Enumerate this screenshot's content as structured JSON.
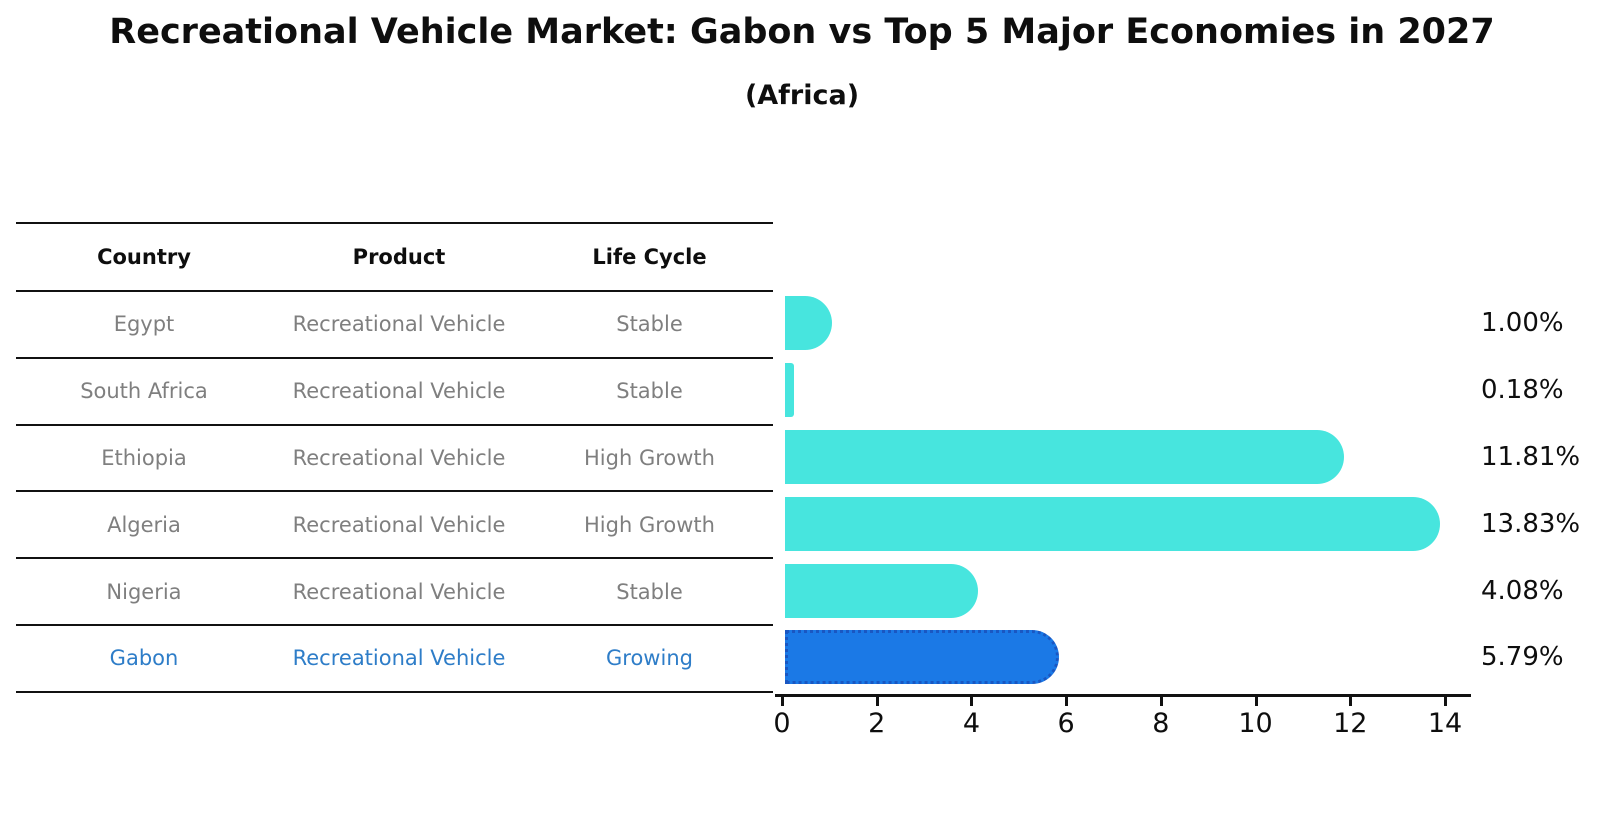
{
  "chart_data": {
    "type": "bar",
    "orientation": "horizontal",
    "title": "Recreational Vehicle Market: Gabon vs Top 5 Major Economies in 2027",
    "subtitle": "(Africa)",
    "categories": [
      "Egypt",
      "South Africa",
      "Ethiopia",
      "Algeria",
      "Nigeria",
      "Gabon"
    ],
    "values": [
      1.0,
      0.18,
      11.81,
      13.83,
      4.08,
      5.79
    ],
    "value_labels": [
      "1.00%",
      "0.18%",
      "11.81%",
      "13.83%",
      "4.08%",
      "5.79%"
    ],
    "x_ticks": [
      "0",
      "2",
      "4",
      "6",
      "8",
      "10",
      "12",
      "14"
    ],
    "x_tick_values": [
      0,
      2,
      4,
      6,
      8,
      10,
      12,
      14
    ],
    "xlim": [
      0,
      14.5
    ],
    "xlabel": "",
    "ylabel": "",
    "grid": false,
    "legend": "none",
    "highlight_category": "Gabon",
    "colors": {
      "bar_default": "#47e5de",
      "bar_highlight": "#1b79e6",
      "bar_highlight_border": "#1a57c2",
      "axis": "#111111",
      "row_text": "#7f7f7f",
      "highlight_text": "#2e7dc8"
    }
  },
  "table": {
    "headers": [
      "Country",
      "Product",
      "Life Cycle"
    ],
    "rows": [
      {
        "country": "Egypt",
        "product": "Recreational Vehicle",
        "life_cycle": "Stable",
        "highlighted": false
      },
      {
        "country": "South Africa",
        "product": "Recreational Vehicle",
        "life_cycle": "Stable",
        "highlighted": false
      },
      {
        "country": "Ethiopia",
        "product": "Recreational Vehicle",
        "life_cycle": "High Growth",
        "highlighted": false
      },
      {
        "country": "Algeria",
        "product": "Recreational Vehicle",
        "life_cycle": "High Growth",
        "highlighted": false
      },
      {
        "country": "Nigeria",
        "product": "Recreational Vehicle",
        "life_cycle": "Stable",
        "highlighted": false
      },
      {
        "country": "Gabon",
        "product": "Recreational Vehicle",
        "life_cycle": "Growing",
        "highlighted": true
      }
    ]
  }
}
